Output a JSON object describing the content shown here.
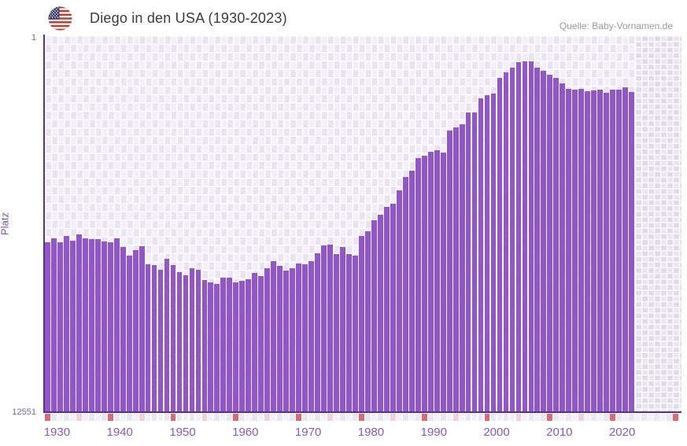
{
  "header": {
    "title": "Diego in den USA (1930-2023)",
    "source": "Quelle: Baby-Vornamen.de",
    "flag_icon": "us-flag-icon"
  },
  "chart_data": {
    "type": "bar",
    "title": "Diego in den USA (1930-2023)",
    "ylabel": "Platz",
    "xlabel": "",
    "y_axis": {
      "top_tick_label": "1",
      "bottom_tick_label": "12551",
      "min": 1,
      "max": 12551,
      "inverted": true,
      "scale": "linear",
      "note": "rank axis: 1 (top, most popular) to 12551 (bottom); bar rises from bottom toward rank of the year"
    },
    "x_ticks": [
      1930,
      1940,
      1950,
      1960,
      1970,
      1980,
      1990,
      2000,
      2010,
      2020
    ],
    "categories": [
      1930,
      1931,
      1932,
      1933,
      1934,
      1935,
      1936,
      1937,
      1938,
      1939,
      1940,
      1941,
      1942,
      1943,
      1944,
      1945,
      1946,
      1947,
      1948,
      1949,
      1950,
      1951,
      1952,
      1953,
      1954,
      1955,
      1956,
      1957,
      1958,
      1959,
      1960,
      1961,
      1962,
      1963,
      1964,
      1965,
      1966,
      1967,
      1968,
      1969,
      1970,
      1971,
      1972,
      1973,
      1974,
      1975,
      1976,
      1977,
      1978,
      1979,
      1980,
      1981,
      1982,
      1983,
      1984,
      1985,
      1986,
      1987,
      1988,
      1989,
      1990,
      1991,
      1992,
      1993,
      1994,
      1995,
      1996,
      1997,
      1998,
      1999,
      2000,
      2001,
      2002,
      2003,
      2004,
      2005,
      2006,
      2007,
      2008,
      2009,
      2010,
      2011,
      2012,
      2013,
      2014,
      2015,
      2016,
      2017,
      2018,
      2019,
      2020,
      2021,
      2022,
      2023
    ],
    "values": [
      6840,
      6726,
      6840,
      6638,
      6788,
      6593,
      6726,
      6752,
      6752,
      6815,
      6840,
      6726,
      7016,
      7297,
      7121,
      6990,
      7579,
      7605,
      7763,
      7410,
      7621,
      7850,
      7955,
      7710,
      7779,
      8113,
      8184,
      8253,
      8042,
      8042,
      8200,
      8147,
      8087,
      7884,
      7981,
      7718,
      7489,
      7631,
      7789,
      7710,
      7552,
      7579,
      7473,
      7210,
      6962,
      6928,
      7252,
      7016,
      7236,
      7297,
      6638,
      6488,
      6111,
      5935,
      5672,
      5558,
      5103,
      4663,
      4460,
      4023,
      3944,
      3812,
      3767,
      3854,
      3109,
      2995,
      2906,
      2516,
      2490,
      2029,
      1924,
      1884,
      1352,
      1168,
      1002,
      817,
      778,
      799,
      1002,
      1107,
      1239,
      1352,
      1521,
      1721,
      1747,
      1705,
      1800,
      1765,
      1747,
      1852,
      1739,
      1747,
      1652,
      1810
    ],
    "series_name": "Platz von Diego in den USA",
    "legend": "none",
    "grid": "white checkerboard grid on lavender background"
  },
  "strip": {
    "description": "small tick squares under x-axis, one per year, continuing past 2023 to right edge",
    "decade_color_years_end": 2020,
    "half_decade_years_end": 2023,
    "last_square": "red"
  },
  "colors": {
    "bar": "#9156c7",
    "axis_line": "#53309a",
    "x_tick_text": "#8659c8",
    "y_tick_text": "#75689c",
    "y_axis_title": "#7c52b8",
    "title_text": "#3c3c3c",
    "source_text": "#9a9a9a",
    "strip_red": "#dc6a75",
    "strip_pink": "#f2d0da",
    "strip_light_a": "#f2f0f8",
    "strip_light_b": "#eae6f2",
    "plot_bg": "#f2eff9",
    "plot_checker": "#e8e3f1",
    "empty_right_bg": "#e9e6ef",
    "flag_red": "#c0392b",
    "flag_blue": "#3c3b6e"
  }
}
